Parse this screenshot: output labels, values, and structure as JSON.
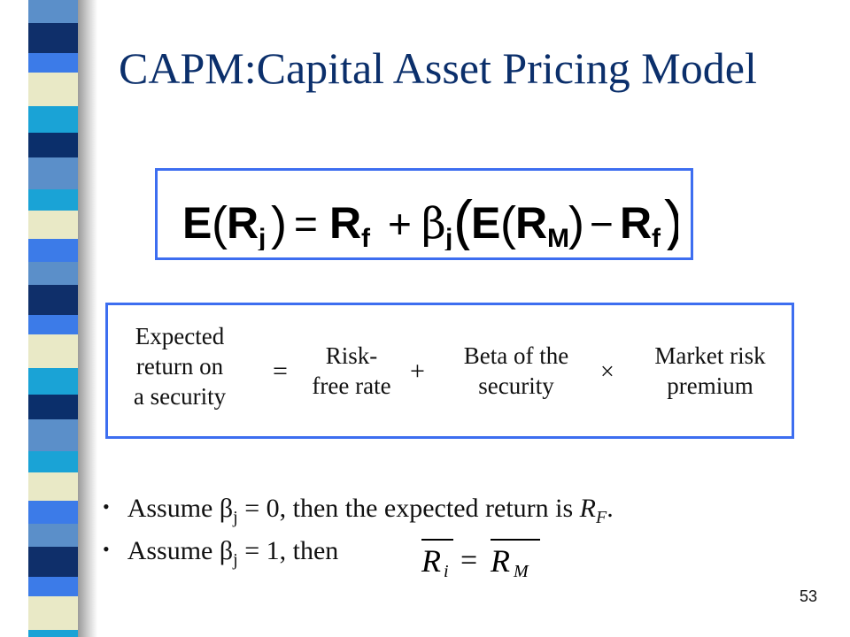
{
  "slide": {
    "title": "CAPM:Capital Asset Pricing Model",
    "page_number": "53"
  },
  "formula": {
    "text": "E(R j) = R f + β j (E(R M) − R f)",
    "E": "E",
    "R": "R",
    "j": "j",
    "f": "f",
    "M": "M",
    "beta": "β",
    "eq": "=",
    "plus": "+",
    "minus": "−"
  },
  "explanation": {
    "expected_return": [
      "Expected",
      "return on",
      "a security"
    ],
    "equals": "=",
    "risk_free": [
      "Risk-",
      "free rate"
    ],
    "plus": "+",
    "beta": [
      "Beta of the",
      "security"
    ],
    "times": "×",
    "market_premium": [
      "Market risk",
      "premium"
    ]
  },
  "bullets": [
    {
      "prefix": "Assume ",
      "beta": "β",
      "sub": "j",
      "middle": " = 0,  then the expected return is ",
      "r": "R",
      "rsub": "F",
      "end": "."
    },
    {
      "prefix": "Assume ",
      "beta": "β",
      "sub": "j",
      "middle": " = 1,  then"
    }
  ],
  "bullet_symbol": "•",
  "overline_eq": {
    "r": "R",
    "i": "i",
    "eq": "=",
    "m": "M"
  },
  "colors": {
    "title": "#0b2f6b",
    "box_border": "#3d6ef0"
  }
}
